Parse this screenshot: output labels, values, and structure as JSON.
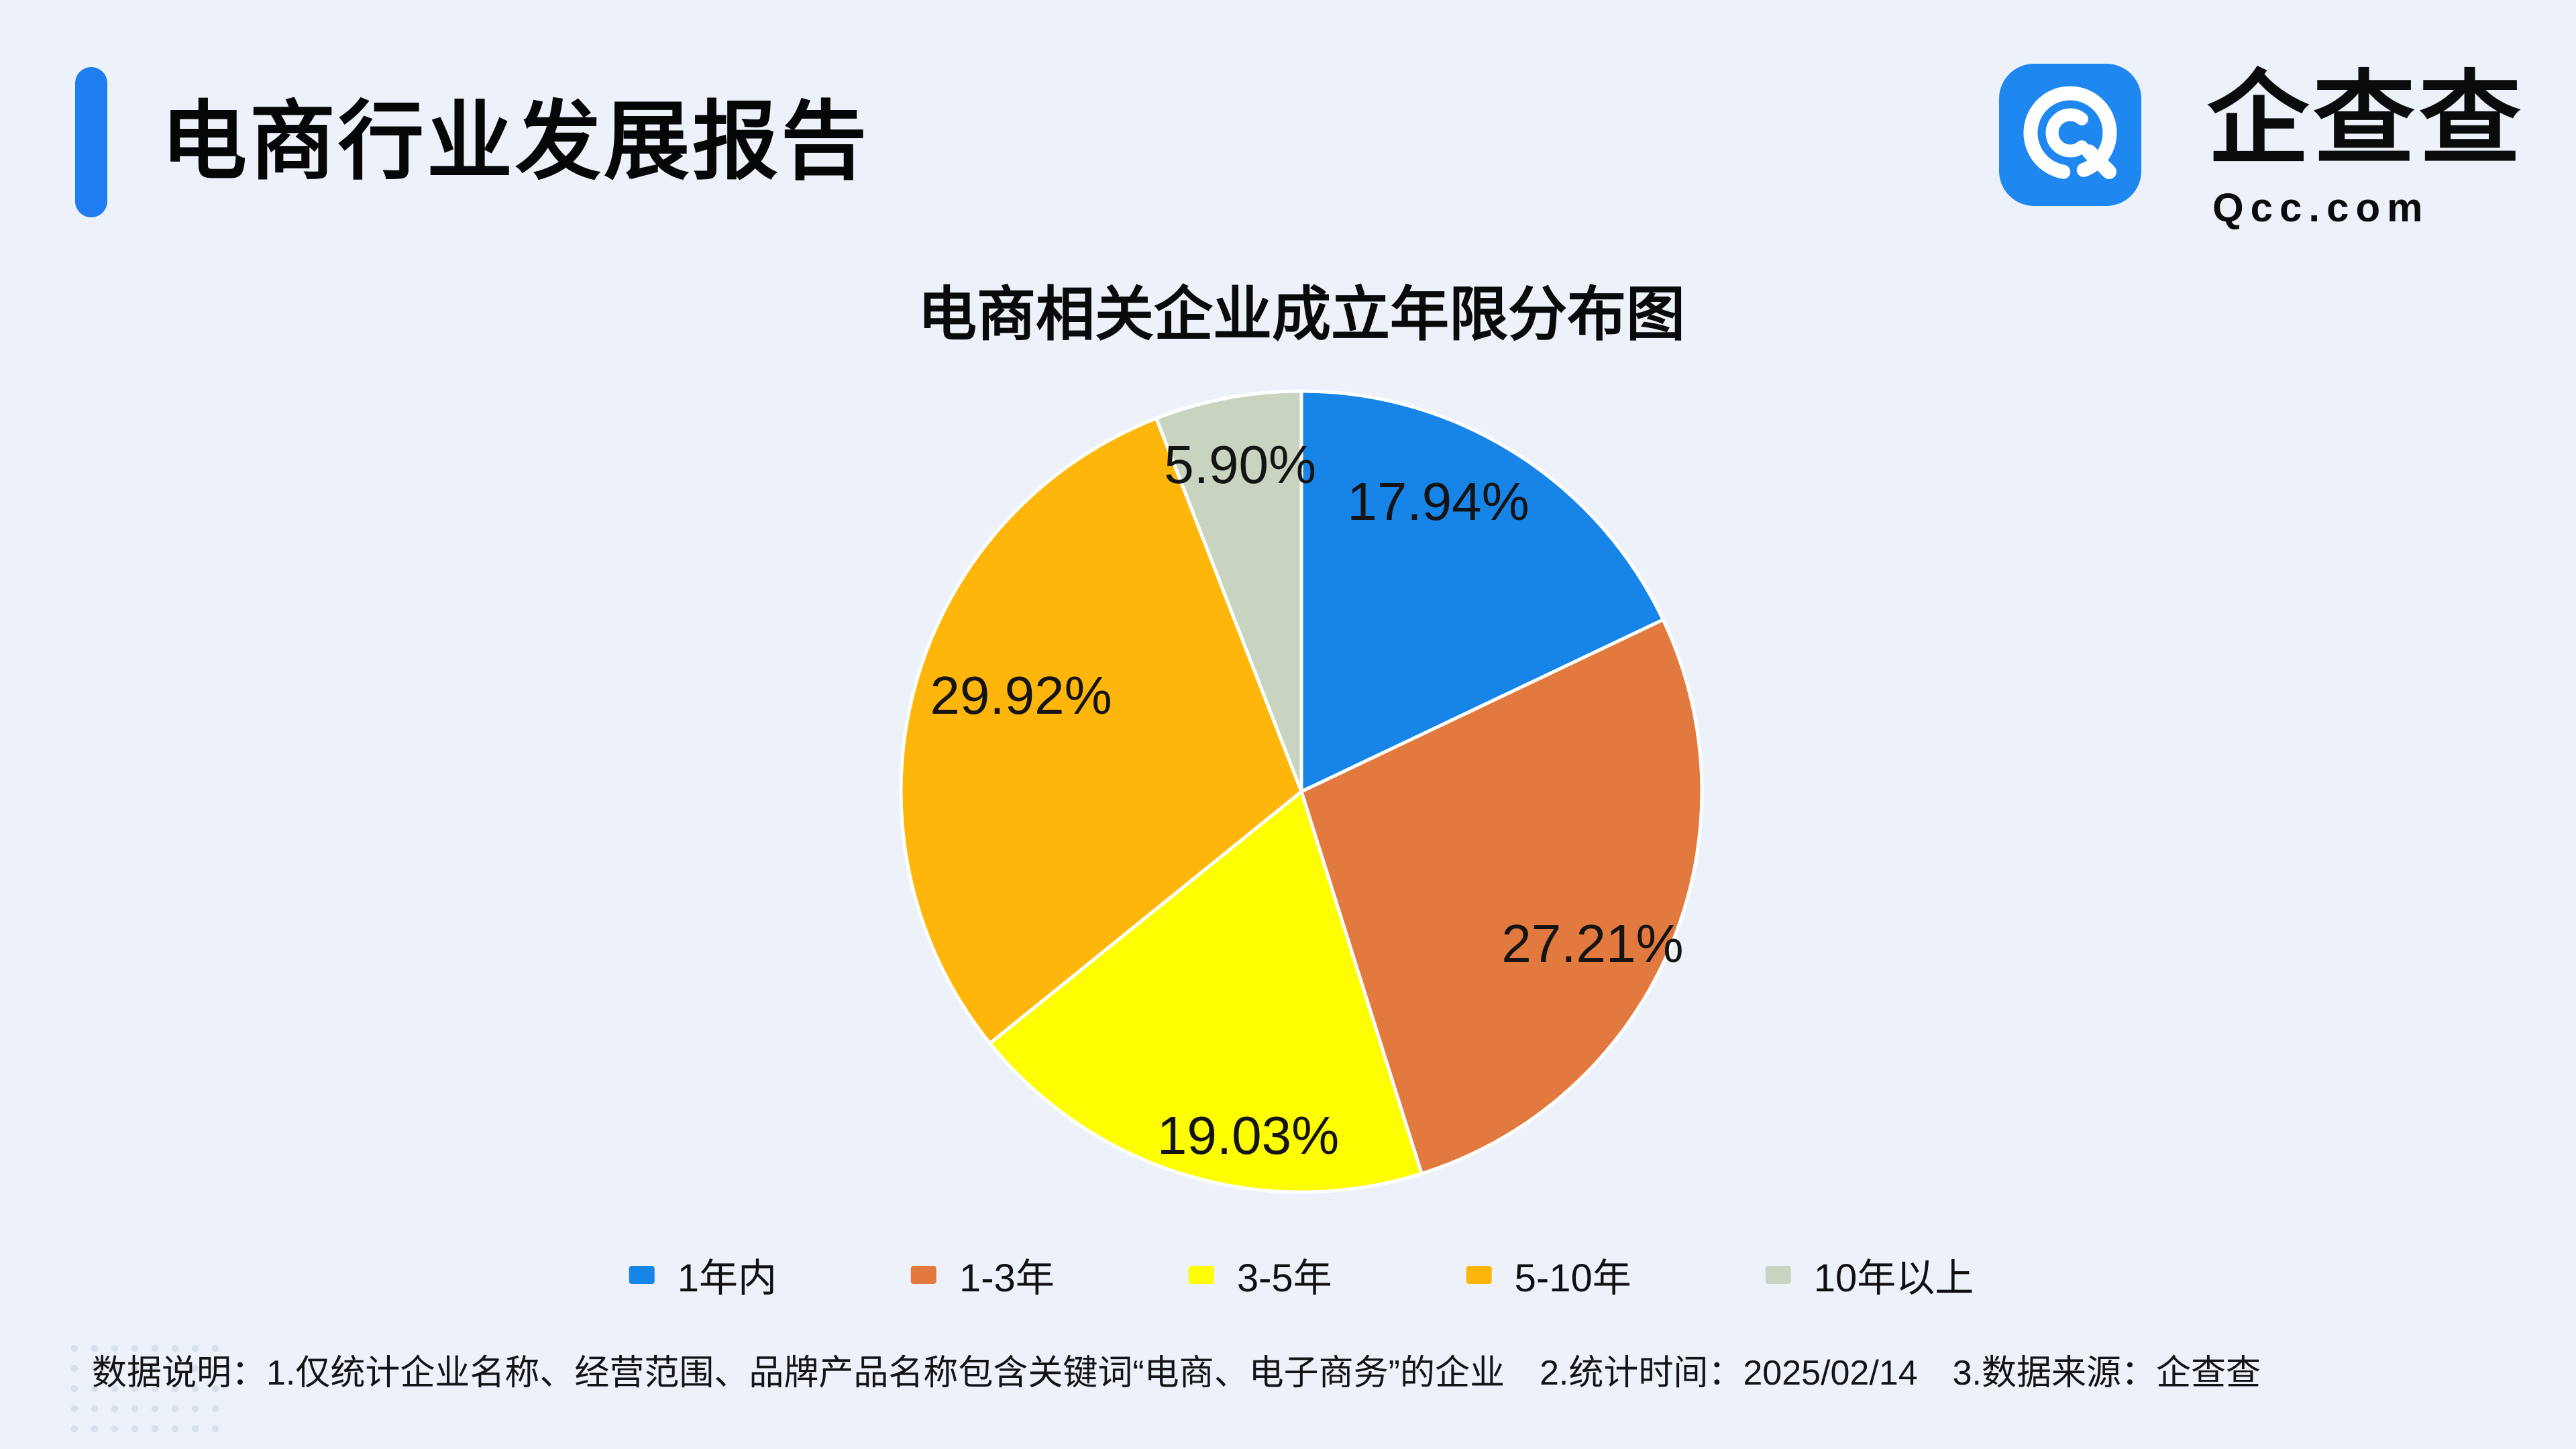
{
  "page": {
    "background": "#EDF2FA"
  },
  "header": {
    "title": "电商行业发展报告",
    "logo_name": "企查查",
    "logo_domain": "Qcc.com"
  },
  "chart_data": {
    "type": "pie",
    "title": "电商相关企业成立年限分布图",
    "categories": [
      "1年内",
      "1-3年",
      "3-5年",
      "5-10年",
      "10年以上"
    ],
    "values": [
      17.94,
      27.21,
      19.03,
      29.92,
      5.9
    ],
    "labels": [
      "17.94%",
      "27.21%",
      "19.03%",
      "29.92%",
      "5.90%"
    ],
    "colors": [
      "#1785E8",
      "#E2793E",
      "#FEFE00",
      "#FFB60A",
      "#C8D4C0"
    ],
    "legend_position": "bottom",
    "start_angle": "12-oclock",
    "direction": "clockwise",
    "label_color": "#141414",
    "slice_border_color": "#FFFFFF"
  },
  "footer": {
    "note": "数据说明：1.仅统计企业名称、经营范围、品牌产品名称包含关键词“电商、电子商务”的企业　2.统计时间：2025/02/14　3.数据来源：企查查"
  },
  "colors": {
    "accent_blue": "#1E7DF0",
    "logo_blue": "#1E87F0",
    "text_dark": "#131313"
  }
}
